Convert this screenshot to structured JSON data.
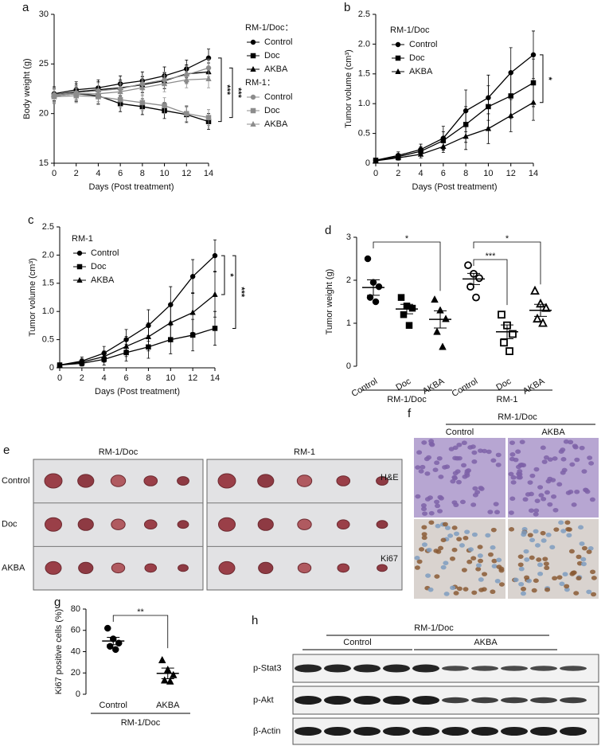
{
  "chart_data": [
    {
      "type": "line",
      "panel": "a",
      "y_label": "Body weight (g)",
      "x_label": "Days (Post treatment)",
      "x": [
        0,
        2,
        4,
        6,
        8,
        10,
        12,
        14
      ],
      "xlim": [
        0,
        14
      ],
      "xticks": [
        0,
        2,
        4,
        6,
        8,
        10,
        12,
        14
      ],
      "ylim": [
        15,
        30
      ],
      "yticks": [
        15,
        20,
        25,
        30
      ],
      "legend_titles": [
        "RM-1/Doc：",
        "RM-1："
      ],
      "series": [
        {
          "name": "Control",
          "color": "#000000",
          "marker": "circle",
          "values": [
            22.0,
            22.4,
            22.6,
            23.0,
            23.3,
            23.8,
            24.5,
            25.6
          ],
          "errors": [
            0.7,
            0.8,
            0.8,
            0.8,
            0.9,
            0.9,
            0.9,
            0.9
          ]
        },
        {
          "name": "Doc",
          "color": "#000000",
          "marker": "square",
          "values": [
            21.8,
            22.0,
            21.8,
            21.0,
            20.7,
            20.3,
            19.9,
            19.2
          ],
          "errors": [
            0.7,
            0.8,
            0.8,
            0.8,
            0.8,
            0.8,
            0.8,
            0.8
          ]
        },
        {
          "name": "AKBA",
          "color": "#000000",
          "marker": "triangle",
          "values": [
            21.9,
            22.2,
            22.4,
            22.6,
            22.9,
            23.3,
            24.0,
            24.2
          ],
          "errors": [
            0.7,
            0.8,
            0.8,
            0.8,
            0.8,
            0.8,
            0.9,
            0.9
          ]
        },
        {
          "name": "Control",
          "color": "#8c8c8c",
          "marker": "circle",
          "values": [
            21.9,
            22.1,
            22.3,
            22.5,
            23.0,
            23.4,
            23.9,
            24.6
          ],
          "errors": [
            0.7,
            0.7,
            0.8,
            0.8,
            0.8,
            0.8,
            0.9,
            0.9
          ]
        },
        {
          "name": "Doc",
          "color": "#8c8c8c",
          "marker": "square",
          "values": [
            21.7,
            21.8,
            21.7,
            21.4,
            21.1,
            20.8,
            20.0,
            19.6
          ],
          "errors": [
            0.7,
            0.7,
            0.8,
            0.8,
            0.8,
            0.8,
            0.8,
            0.8
          ]
        },
        {
          "name": "AKBA",
          "color": "#8c8c8c",
          "marker": "triangle",
          "values": [
            21.8,
            22.0,
            22.0,
            22.2,
            22.6,
            23.0,
            23.4,
            23.5
          ],
          "errors": [
            0.7,
            0.7,
            0.8,
            0.8,
            0.8,
            0.8,
            0.8,
            0.9
          ]
        }
      ],
      "significance": [
        "***",
        "***"
      ]
    },
    {
      "type": "line",
      "panel": "b",
      "y_label": "Tumor volume (cm³)",
      "x_label": "Days (Post treatment)",
      "x": [
        0,
        2,
        4,
        6,
        8,
        10,
        12,
        14
      ],
      "xlim": [
        0,
        14
      ],
      "xticks": [
        0,
        2,
        4,
        6,
        8,
        10,
        12,
        14
      ],
      "ylim": [
        0,
        2.5
      ],
      "yticks": [
        0,
        0.5,
        {
          "value": 1,
          "label": "1.0"
        },
        1.5,
        {
          "value": 2,
          "label": "2.0"
        },
        2.5
      ],
      "legend_title": "RM-1/Doc",
      "series": [
        {
          "name": "Control",
          "color": "#000000",
          "marker": "circle",
          "values": [
            0.05,
            0.13,
            0.23,
            0.42,
            0.88,
            1.1,
            1.52,
            1.82
          ],
          "errors": [
            0.03,
            0.06,
            0.09,
            0.2,
            0.35,
            0.38,
            0.42,
            0.4
          ]
        },
        {
          "name": "Doc",
          "color": "#000000",
          "marker": "square",
          "values": [
            0.05,
            0.11,
            0.2,
            0.38,
            0.65,
            0.95,
            1.13,
            1.35
          ],
          "errors": [
            0.03,
            0.05,
            0.08,
            0.15,
            0.3,
            0.35,
            0.38,
            0.4
          ]
        },
        {
          "name": "AKBA",
          "color": "#000000",
          "marker": "triangle",
          "values": [
            0.04,
            0.09,
            0.15,
            0.28,
            0.45,
            0.58,
            0.8,
            1.02
          ],
          "errors": [
            0.02,
            0.04,
            0.06,
            0.1,
            0.22,
            0.25,
            0.27,
            0.3
          ]
        }
      ],
      "significance": [
        "*"
      ]
    },
    {
      "type": "line",
      "panel": "c",
      "y_label": "Tumor volume (cm³)",
      "x_label": "Days (Post treatment)",
      "x": [
        0,
        2,
        4,
        6,
        8,
        10,
        12,
        14
      ],
      "xlim": [
        0,
        14
      ],
      "xticks": [
        0,
        2,
        4,
        6,
        8,
        10,
        12,
        14
      ],
      "ylim": [
        0,
        2.5
      ],
      "yticks": [
        0,
        0.5,
        {
          "value": 1,
          "label": "1.0"
        },
        1.5,
        {
          "value": 2,
          "label": "2.0"
        },
        2.5
      ],
      "legend_title": "RM-1",
      "series": [
        {
          "name": "Control",
          "color": "#000000",
          "marker": "circle",
          "values": [
            0.05,
            0.12,
            0.26,
            0.5,
            0.75,
            1.12,
            1.62,
            1.99
          ],
          "errors": [
            0.03,
            0.07,
            0.12,
            0.18,
            0.28,
            0.32,
            0.3,
            0.28
          ]
        },
        {
          "name": "Doc",
          "color": "#000000",
          "marker": "square",
          "values": [
            0.05,
            0.08,
            0.15,
            0.27,
            0.37,
            0.5,
            0.58,
            0.7
          ],
          "errors": [
            0.03,
            0.05,
            0.1,
            0.15,
            0.2,
            0.25,
            0.28,
            0.3
          ]
        },
        {
          "name": "AKBA",
          "color": "#000000",
          "marker": "triangle",
          "values": [
            0.05,
            0.1,
            0.2,
            0.38,
            0.55,
            0.8,
            0.98,
            1.3
          ],
          "errors": [
            0.03,
            0.06,
            0.1,
            0.18,
            0.25,
            0.3,
            0.35,
            0.4
          ]
        }
      ],
      "significance": [
        "*",
        "***"
      ]
    },
    {
      "type": "dot",
      "panel": "d",
      "y_label": "Tumor weight (g)",
      "categories": [
        "Control",
        "Doc",
        "AKBA",
        "Control",
        "Doc",
        "AKBA"
      ],
      "groups": [
        "RM-1/Doc",
        "RM-1"
      ],
      "markers": [
        "circle",
        "square",
        "triangle",
        "circle",
        "square",
        "triangle"
      ],
      "filled": [
        true,
        true,
        true,
        false,
        false,
        false
      ],
      "ylim": [
        0,
        3
      ],
      "yticks": [
        0,
        1,
        2,
        3
      ],
      "points": [
        [
          2.5,
          1.95,
          1.85,
          1.6,
          1.5
        ],
        [
          1.6,
          1.4,
          1.35,
          1.2,
          0.95
        ],
        [
          1.55,
          1.3,
          1.1,
          0.8,
          0.45
        ],
        [
          2.35,
          2.15,
          2.05,
          1.85,
          1.6
        ],
        [
          1.2,
          0.95,
          0.75,
          0.55,
          0.35
        ],
        [
          1.75,
          1.45,
          1.35,
          1.1,
          1.0
        ]
      ],
      "means": [
        1.83,
        1.33,
        1.09,
        2.03,
        0.8,
        1.3
      ],
      "errors": [
        0.18,
        0.11,
        0.2,
        0.13,
        0.16,
        0.14
      ],
      "significance": [
        "*",
        "***",
        "*"
      ]
    },
    {
      "type": "dot",
      "panel": "g",
      "y_label": "Ki67 positive cells (%)",
      "categories": [
        "Control",
        "AKBA"
      ],
      "groups": [
        "RM-1/Doc"
      ],
      "markers": [
        "circle",
        "triangle"
      ],
      "filled": [
        true,
        true
      ],
      "ylim": [
        0,
        80
      ],
      "yticks": [
        0,
        20,
        40,
        60,
        80
      ],
      "points": [
        [
          62,
          52,
          48,
          45,
          42
        ],
        [
          32,
          23,
          18,
          13,
          12
        ]
      ],
      "means": [
        50,
        19.6
      ],
      "errors": [
        3.5,
        5
      ],
      "significance": [
        "**"
      ]
    }
  ],
  "panel_e": {
    "panel": "e",
    "titles": [
      "RM-1/Doc",
      "RM-1"
    ],
    "rows": [
      "Control",
      "Doc",
      "AKBA"
    ]
  },
  "panel_f": {
    "panel": "f",
    "title": "RM-1/Doc",
    "columns": [
      "Control",
      "AKBA"
    ],
    "rows": [
      "H&E",
      "Ki67"
    ]
  },
  "panel_h": {
    "panel": "h",
    "title": "RM-1/Doc",
    "groups": [
      "Control",
      "AKBA"
    ],
    "rows": [
      "p-Stat3",
      "p-Akt",
      "β-Actin"
    ]
  }
}
